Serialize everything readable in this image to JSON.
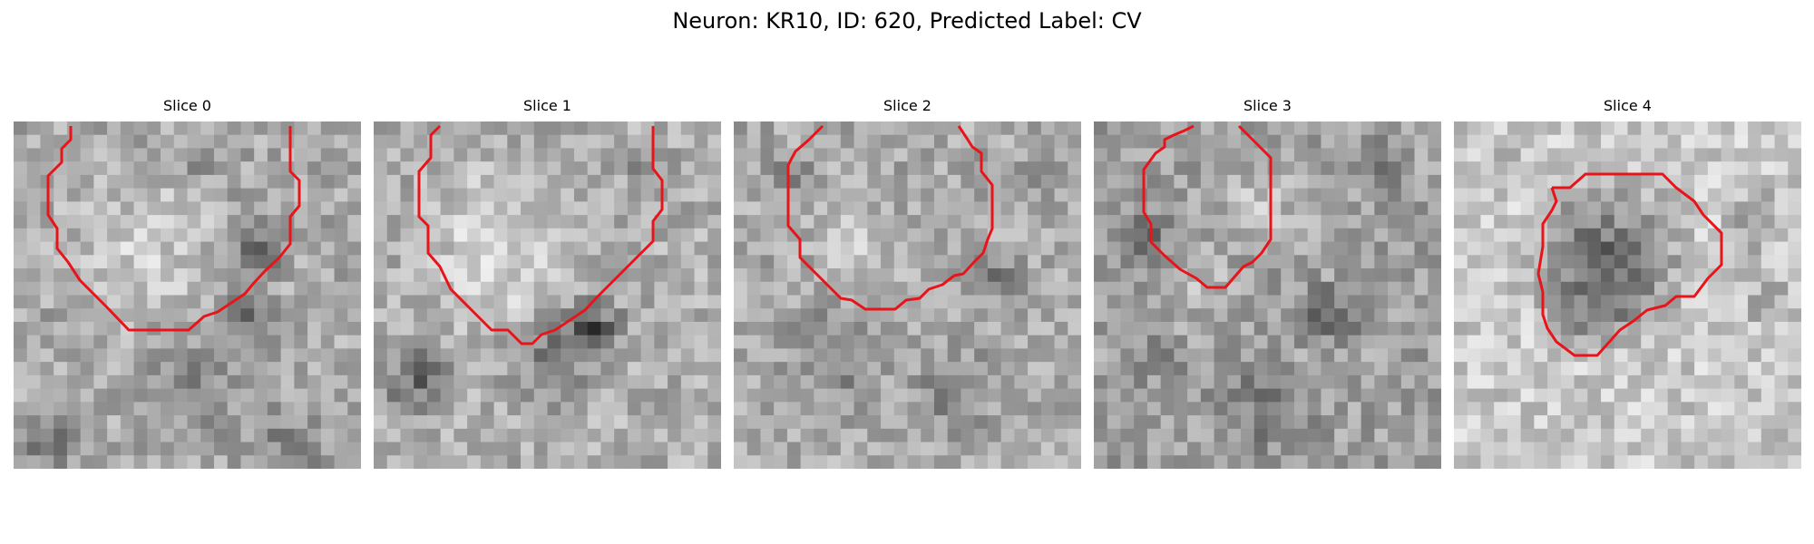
{
  "figure": {
    "title": "Neuron: KR10, ID: 620, Predicted Label: CV"
  },
  "panels": [
    {
      "title": "Slice 0"
    },
    {
      "title": "Slice 1"
    },
    {
      "title": "Slice 2"
    },
    {
      "title": "Slice 3"
    },
    {
      "title": "Slice 4"
    }
  ],
  "colors": {
    "contour": "#e8141a",
    "background": "#ffffff"
  }
}
